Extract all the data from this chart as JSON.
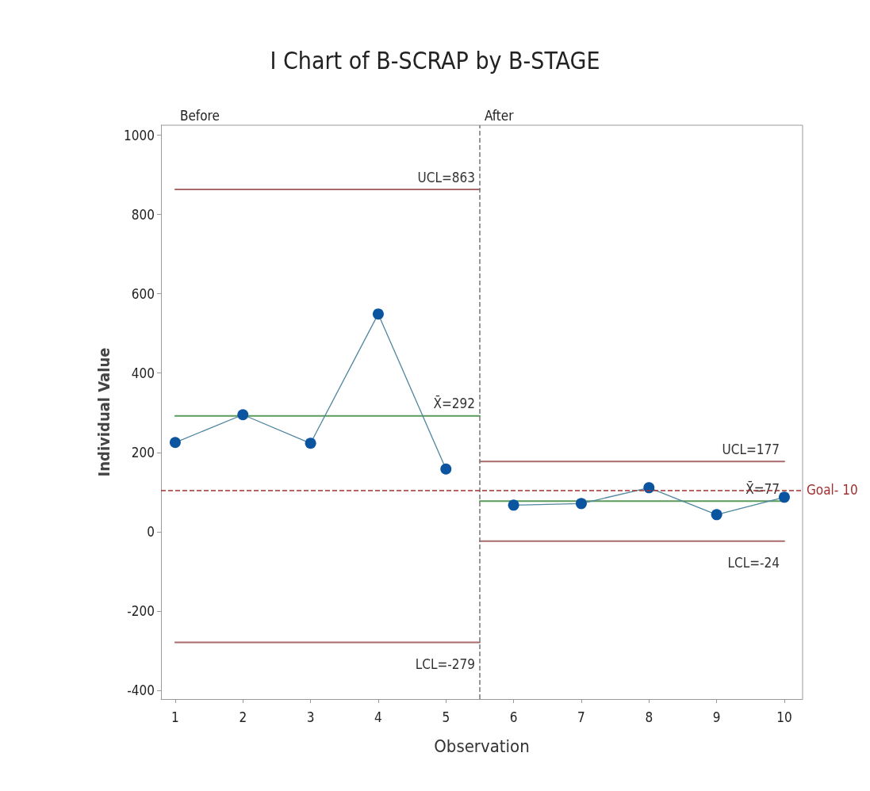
{
  "chart_data": {
    "type": "line",
    "title": "I Chart of B-SCRAP by B-STAGE",
    "xlabel": "Observation",
    "ylabel": "Individual Value",
    "xlim": [
      0.79,
      10.27
    ],
    "xticks": [
      1,
      2,
      3,
      4,
      5,
      6,
      7,
      8,
      9,
      10
    ],
    "ylim": [
      -422,
      1025
    ],
    "yticks": [
      -400,
      -200,
      0,
      200,
      400,
      600,
      800,
      1000
    ],
    "grid": false,
    "marker": "circle",
    "line_style": "solid",
    "series": [
      {
        "color": "#0b55a0",
        "x": [
          1,
          2,
          3,
          4,
          5
        ],
        "values": [
          225,
          295,
          223,
          549,
          158
        ]
      },
      {
        "color": "#0b55a0",
        "x": [
          6,
          7,
          8,
          9,
          10
        ],
        "values": [
          67,
          71,
          111,
          43,
          87
        ]
      },
      {
        "name": "UCL=863",
        "color": "#a86a6a",
        "marker": "none",
        "x": [
          1,
          5.5
        ],
        "values": [
          863,
          863
        ]
      },
      {
        "name": "X̄=292",
        "color": "#5a9a5a",
        "marker": "none",
        "x": [
          1,
          5.5
        ],
        "values": [
          292,
          292
        ]
      },
      {
        "name": "LCL=-279",
        "color": "#a86a6a",
        "marker": "none",
        "x": [
          1,
          5.5
        ],
        "values": [
          -279,
          -279
        ]
      },
      {
        "name": "UCL=177",
        "color": "#a86a6a",
        "marker": "none",
        "x": [
          5.5,
          10
        ],
        "values": [
          177,
          177
        ]
      },
      {
        "name": "X̄=77",
        "color": "#5a9a5a",
        "marker": "none",
        "x": [
          5.5,
          10
        ],
        "values": [
          77,
          77
        ]
      },
      {
        "name": "LCL=-24",
        "color": "#a86a6a",
        "marker": "none",
        "x": [
          5.5,
          10
        ],
        "values": [
          -24,
          -24
        ]
      }
    ],
    "ref_lines": [
      {
        "axis": "x",
        "value": 5.5,
        "color": "#777777",
        "line_style": "dashed"
      },
      {
        "axis": "y",
        "value": 105,
        "label": "Goal- 10",
        "color": "#a03030",
        "line_style": "dashed"
      }
    ],
    "annotations": [
      "Before",
      "After"
    ]
  }
}
